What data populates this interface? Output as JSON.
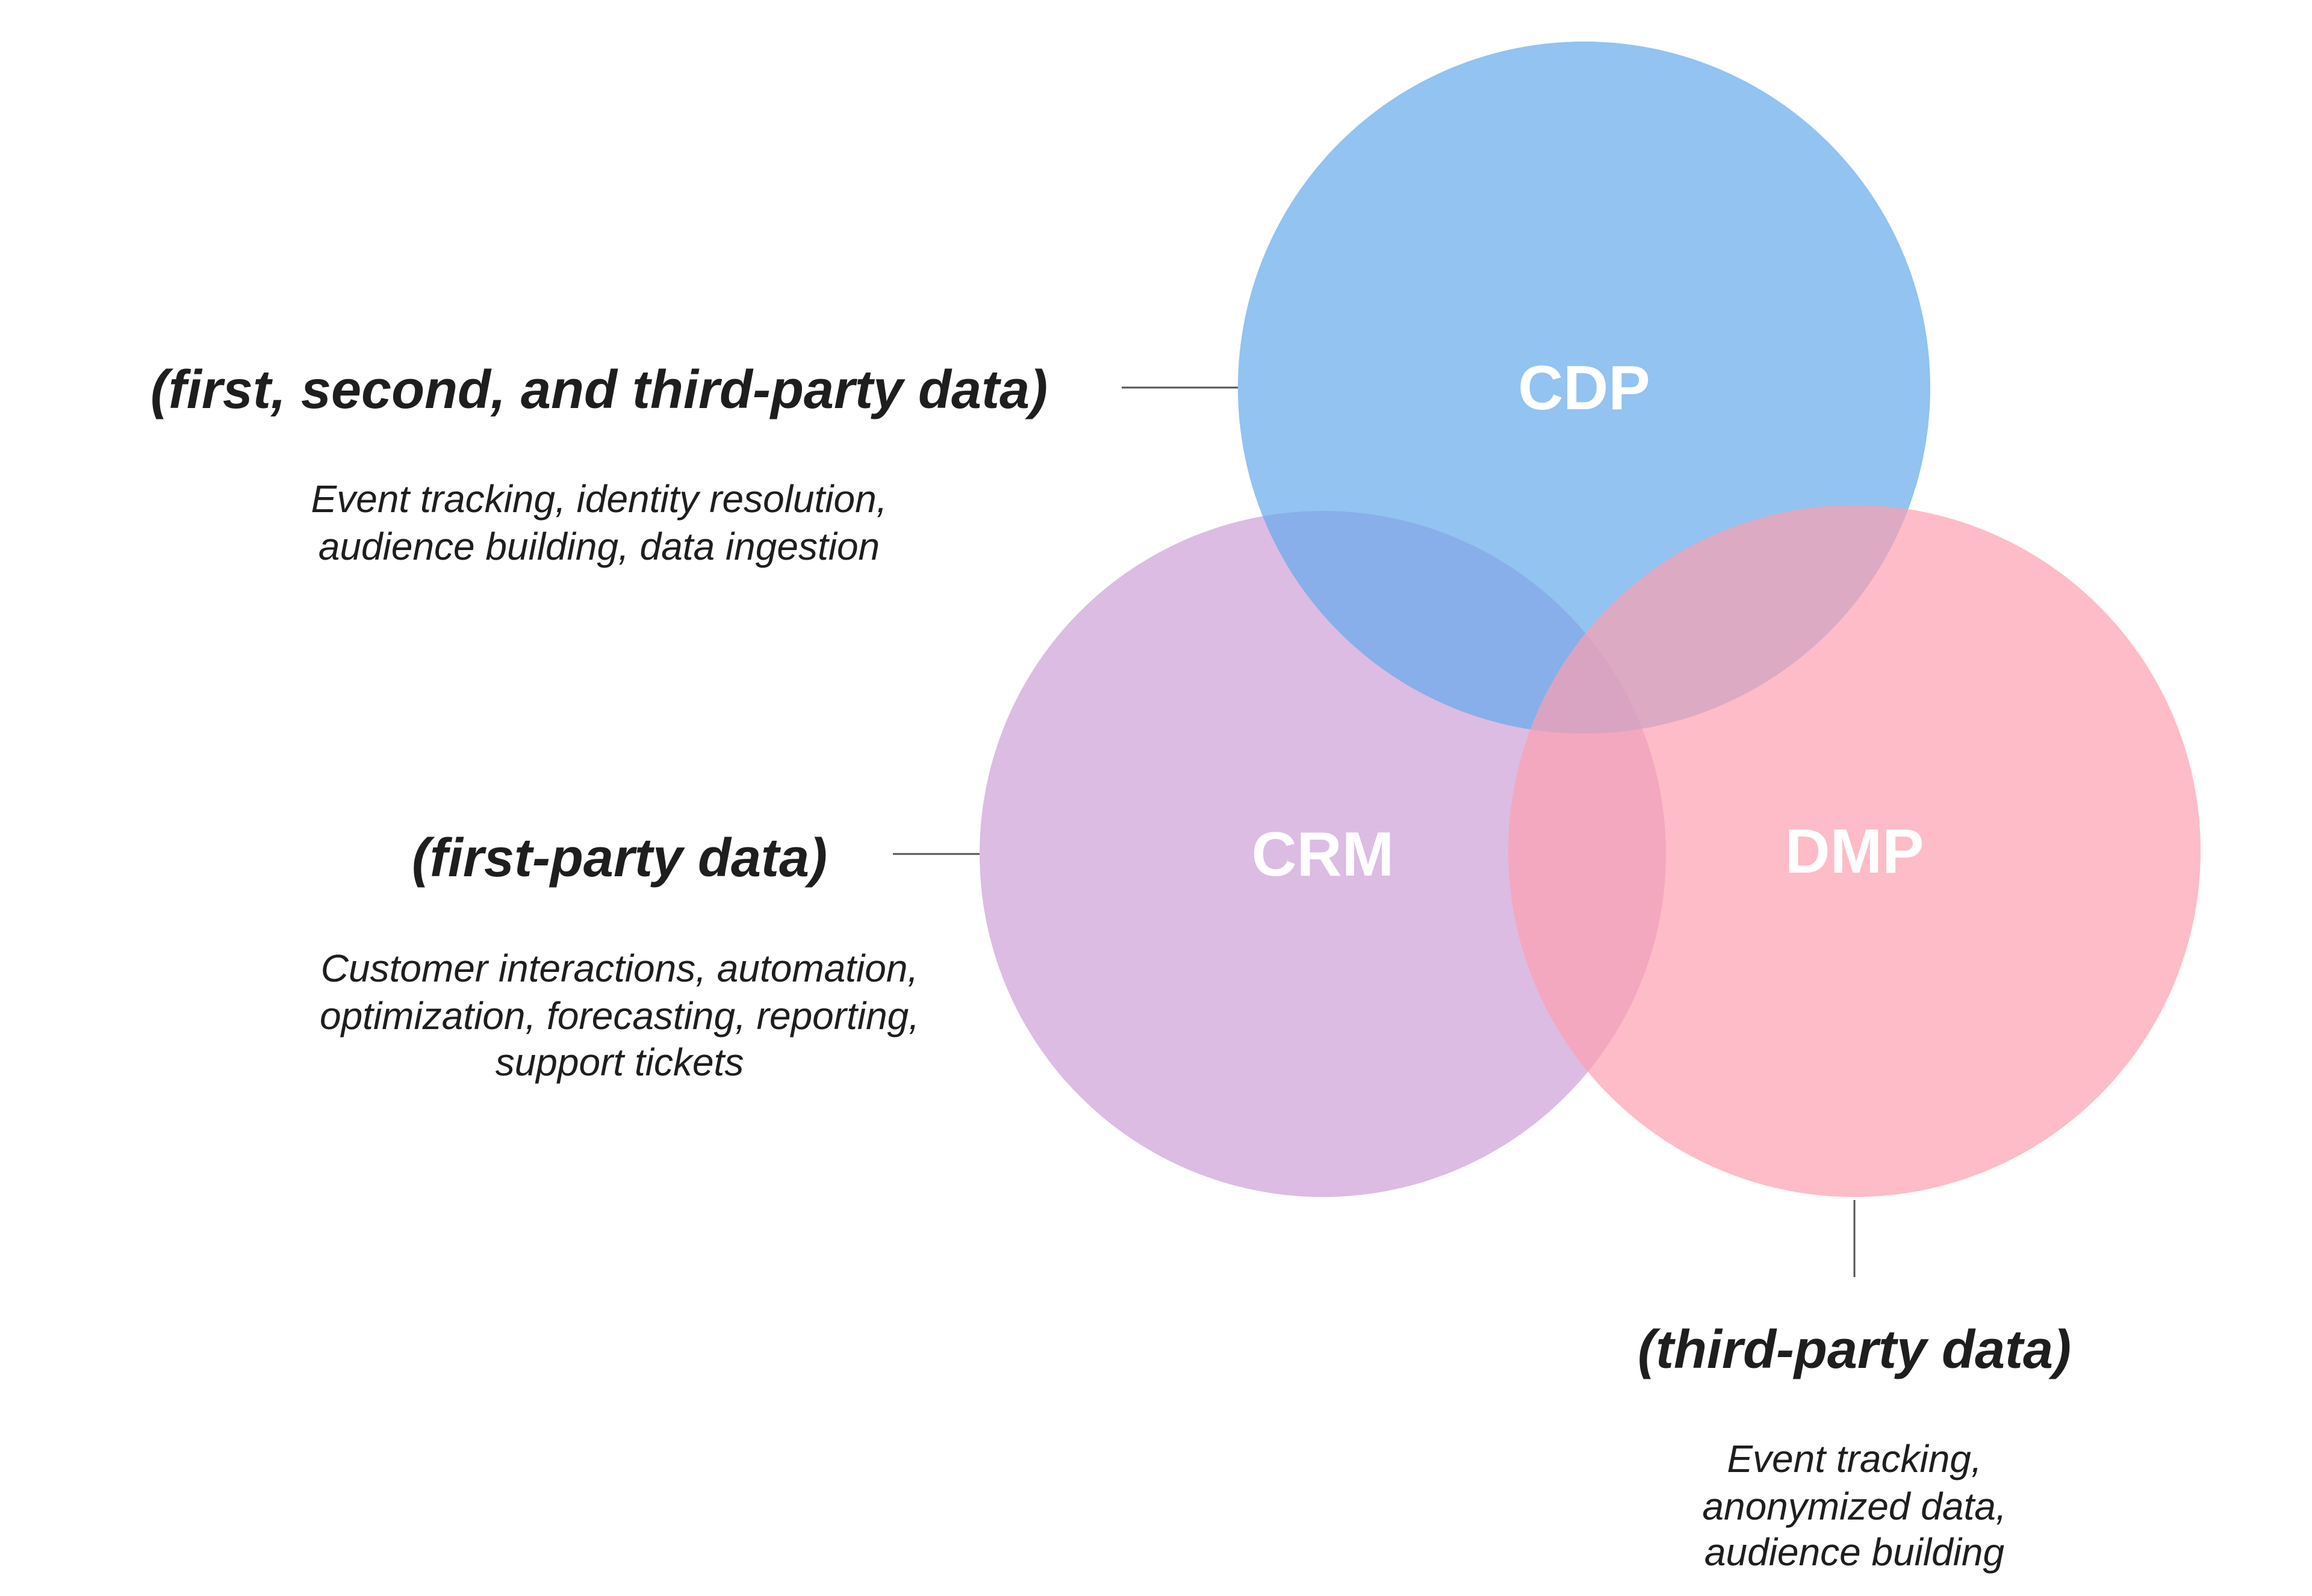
{
  "colors": {
    "crm": "#cda0d7",
    "cdp": "#64aaeb",
    "dmp": "#fca0af",
    "text": "#1e1e1e",
    "circle_text": "#ffffff"
  },
  "circles": {
    "cdp": {
      "label": "CDP"
    },
    "crm": {
      "label": "CRM"
    },
    "dmp": {
      "label": "DMP"
    }
  },
  "annotations": {
    "cdp": {
      "heading": "(first, second, and third-party data)",
      "lines": [
        "Event tracking, identity resolution,",
        "audience building, data ingestion"
      ]
    },
    "crm": {
      "heading": "(first-party data)",
      "lines": [
        "Customer interactions, automation,",
        "optimization, forecasting, reporting,",
        "support tickets"
      ]
    },
    "dmp": {
      "heading": "(third-party data)",
      "lines": [
        "Event tracking,",
        "anonymized data,",
        "audience building"
      ]
    }
  }
}
